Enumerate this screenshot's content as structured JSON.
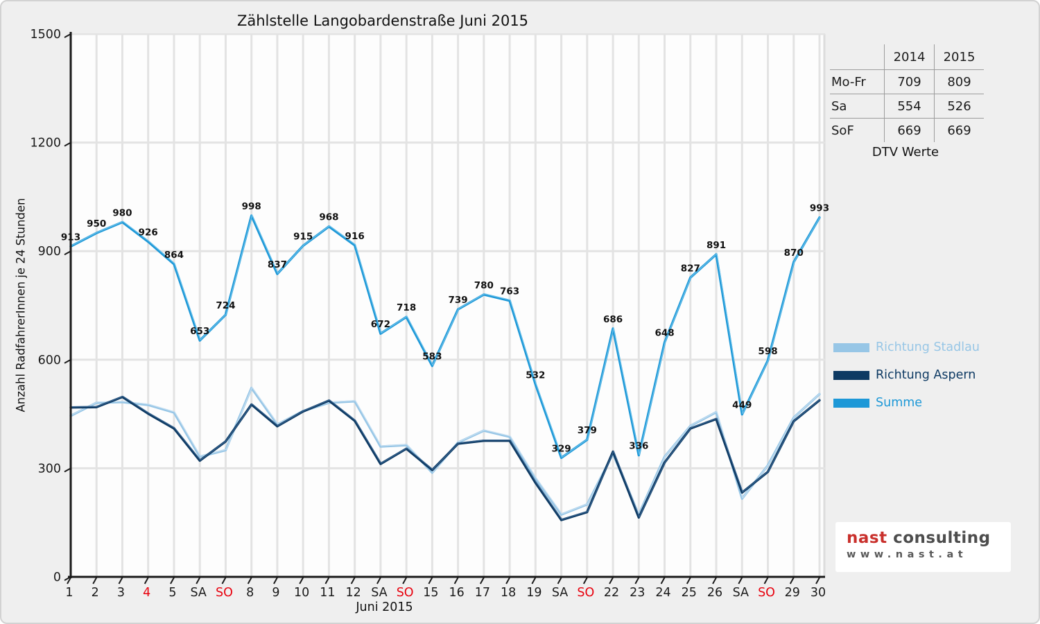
{
  "chart_data": {
    "type": "line",
    "title": "Zählstelle Langobardenstraße Juni 2015",
    "ylabel": "Anzahl RadfahrerInnen je 24 Stunden",
    "xlabel": "Juni 2015",
    "ylim": [
      0,
      1500
    ],
    "yticks": [
      0,
      300,
      600,
      900,
      1200,
      1500
    ],
    "grid": true,
    "legend_position": "right",
    "categories": [
      "1",
      "2",
      "3",
      "4",
      "5",
      "SA",
      "SO",
      "8",
      "9",
      "10",
      "11",
      "12",
      "SA",
      "SO",
      "15",
      "16",
      "17",
      "18",
      "19",
      "SA",
      "SO",
      "22",
      "23",
      "24",
      "25",
      "26",
      "SA",
      "SO",
      "29",
      "30"
    ],
    "holiday_indices": [
      3,
      6,
      13,
      20,
      27
    ],
    "series": [
      {
        "name": "Richtung Stadlau",
        "color": "#97c6e6",
        "highlight": "#c4def1",
        "show_point_labels": false,
        "values": [
          445,
          481,
          483,
          475,
          454,
          332,
          350,
          522,
          421,
          458,
          481,
          485,
          360,
          364,
          288,
          371,
          404,
          387,
          272,
          172,
          200,
          340,
          172,
          332,
          417,
          455,
          216,
          308,
          440,
          505
        ]
      },
      {
        "name": "Richtung Aspern",
        "color": "#0e3a63",
        "highlight": "#35628e",
        "show_point_labels": false,
        "values": [
          468,
          469,
          497,
          451,
          410,
          321,
          374,
          476,
          416,
          457,
          487,
          431,
          312,
          354,
          295,
          368,
          376,
          376,
          260,
          157,
          179,
          346,
          164,
          316,
          410,
          436,
          233,
          290,
          430,
          488
        ]
      },
      {
        "name": "Summe",
        "color": "#1d98d7",
        "highlight": "#67bee9",
        "show_point_labels": true,
        "values": [
          913,
          950,
          980,
          926,
          864,
          653,
          724,
          998,
          837,
          915,
          968,
          916,
          672,
          718,
          583,
          739,
          780,
          763,
          532,
          329,
          379,
          686,
          336,
          648,
          827,
          891,
          449,
          598,
          870,
          993
        ]
      }
    ]
  },
  "table": {
    "col_headers": [
      "2014",
      "2015"
    ],
    "rows": [
      {
        "label": "Mo-Fr",
        "values": [
          "709",
          "809"
        ]
      },
      {
        "label": "Sa",
        "values": [
          "554",
          "526"
        ]
      },
      {
        "label": "SoF",
        "values": [
          "669",
          "669"
        ]
      }
    ],
    "caption": "DTV Werte"
  },
  "logo": {
    "brand_primary": "nast",
    "brand_secondary": " consulting",
    "url_text": "www.nast.at",
    "primary_color": "#c9302c",
    "secondary_color": "#4d4d4d",
    "url_color": "#595959"
  },
  "colors": {
    "background": "#efefef",
    "plot_background": "#fdfdfd",
    "gridline": "#e3e3e3",
    "axis": "#1a1a1a",
    "text": "#1a1a1a",
    "holiday_red": "#e8000d"
  }
}
